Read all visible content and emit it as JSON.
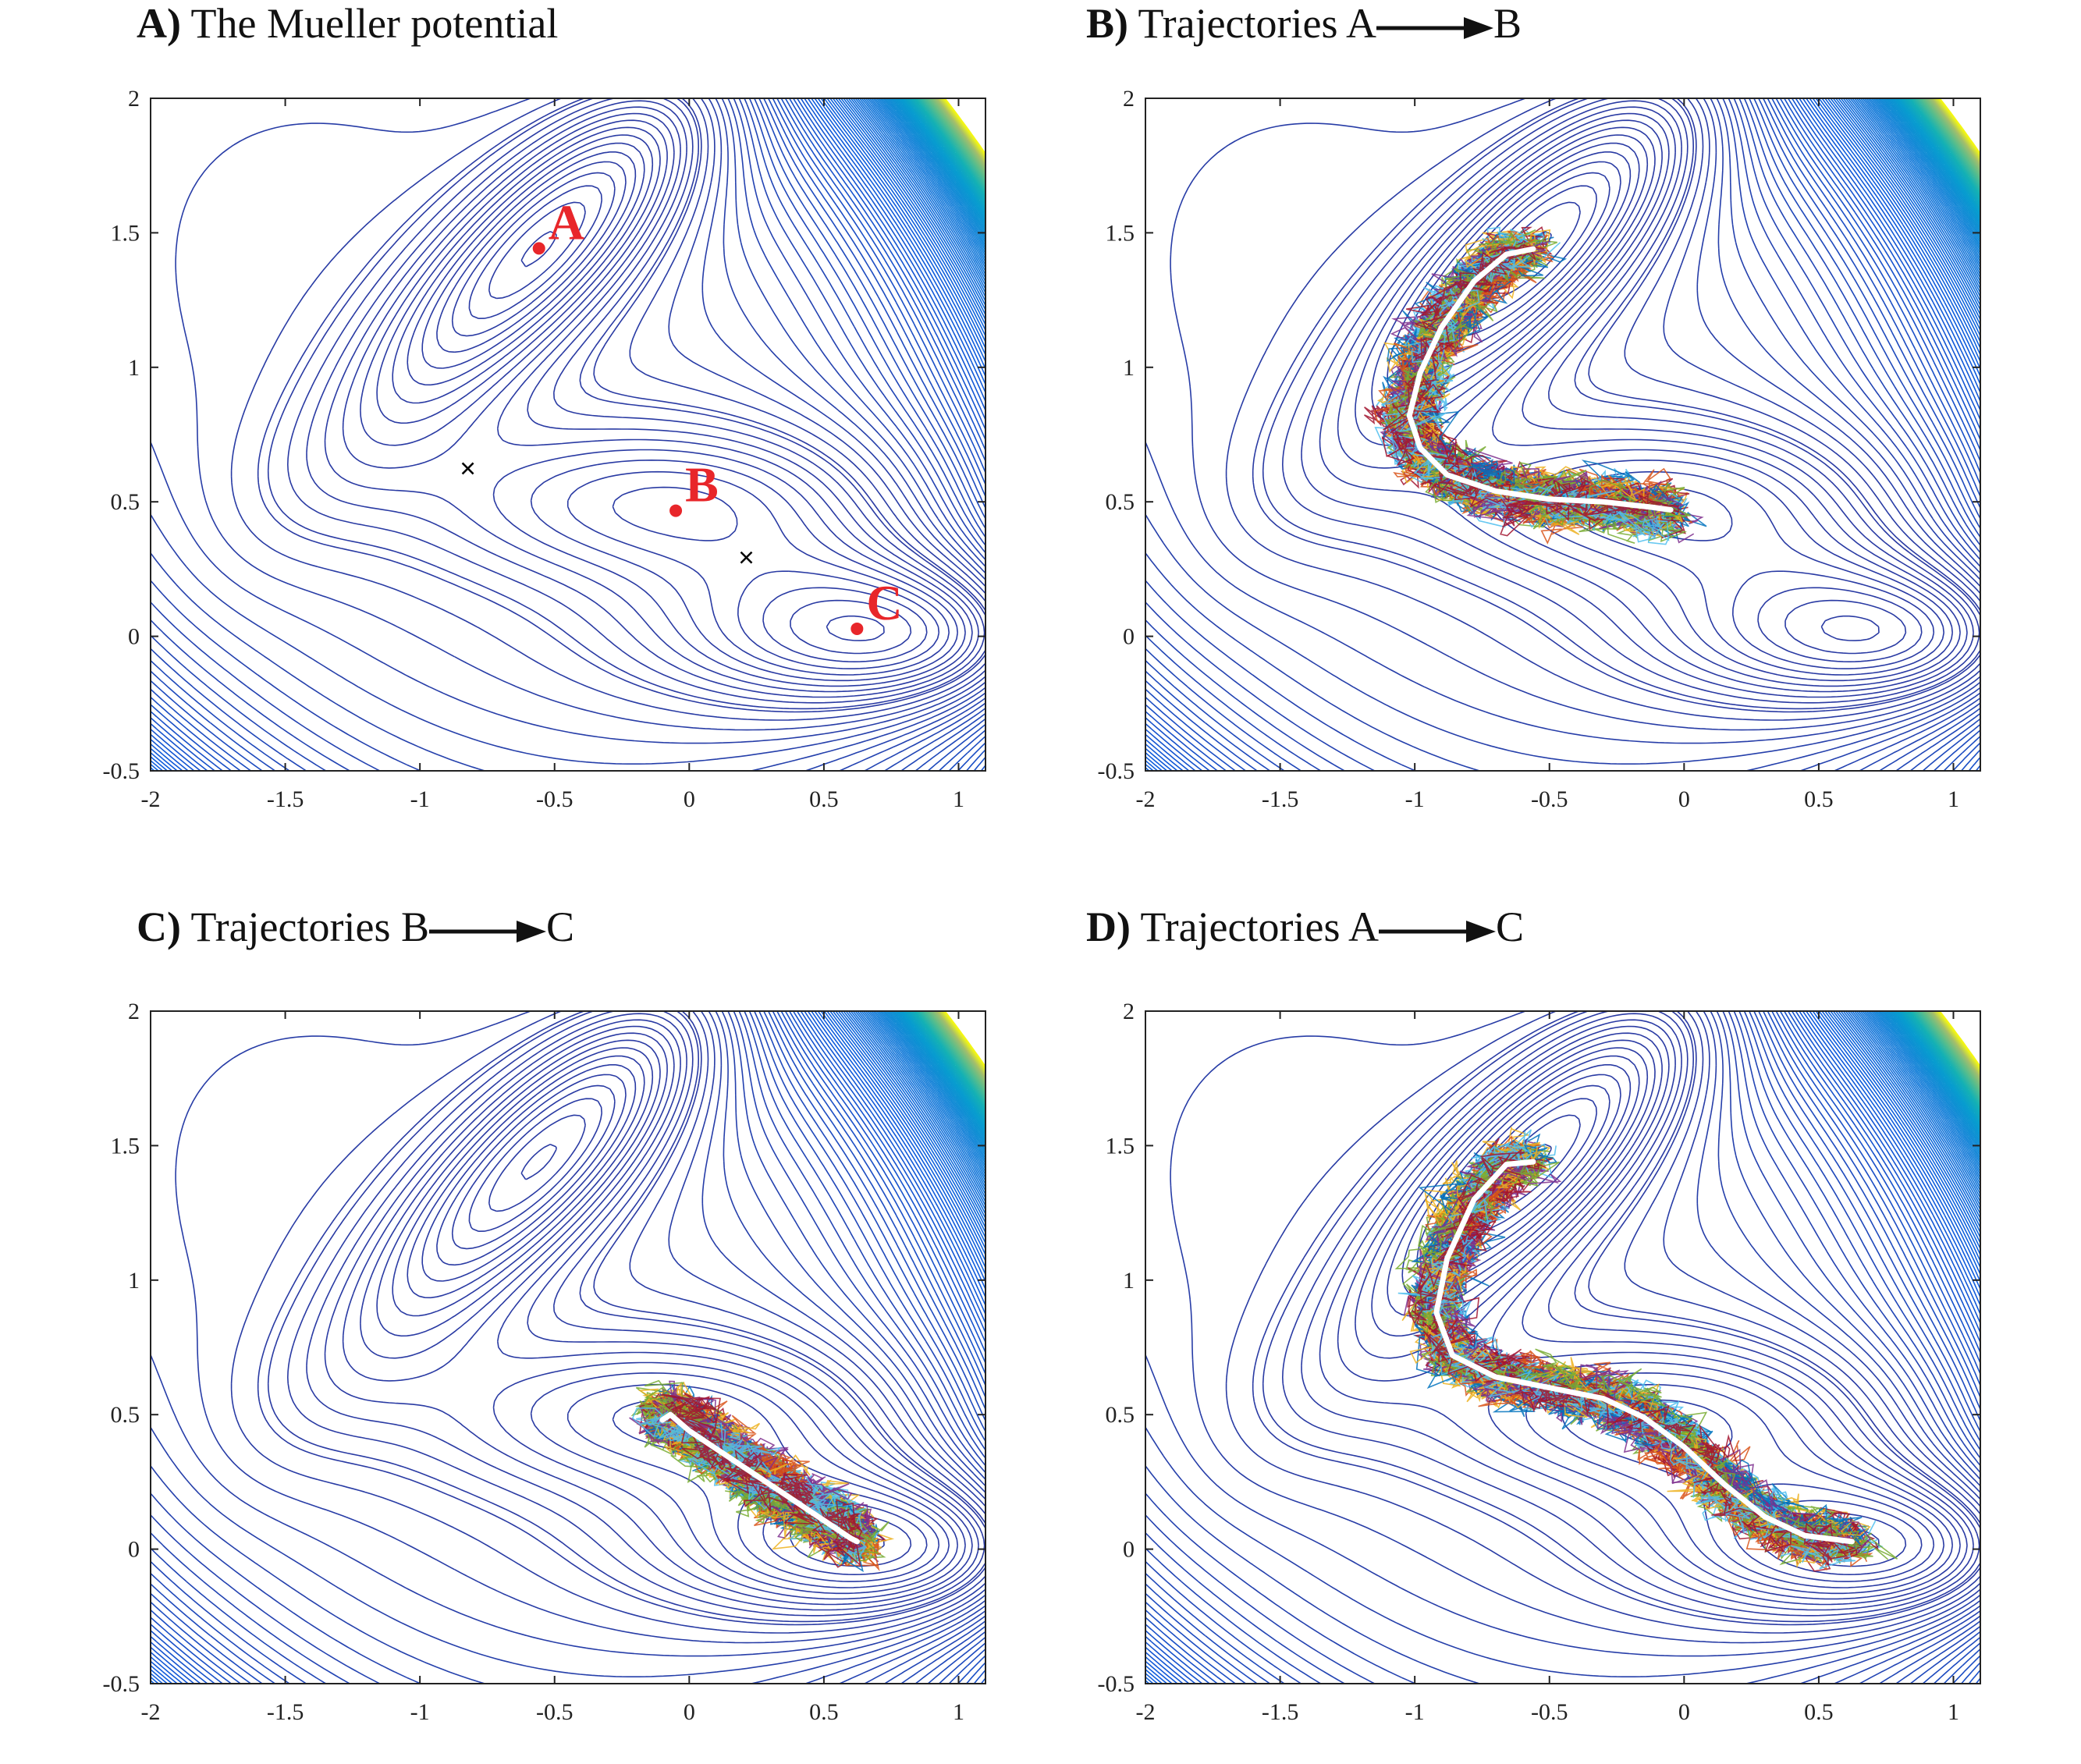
{
  "chart_data": [
    {
      "type": "contour",
      "title_letter": "A)",
      "title_text": "The Mueller potential",
      "xlim": [
        -2,
        1.1
      ],
      "ylim": [
        -0.5,
        2
      ],
      "xticks": [
        "-2",
        "-1.5",
        "-1",
        "-0.5",
        "0",
        "0.5",
        "1"
      ],
      "yticks": [
        "-0.5",
        "0",
        "0.5",
        "1",
        "1.5",
        "2"
      ],
      "minima": [
        {
          "label": "A",
          "x": -0.558,
          "y": 1.442
        },
        {
          "label": "B",
          "x": -0.05,
          "y": 0.467
        },
        {
          "label": "C",
          "x": 0.623,
          "y": 0.028
        }
      ],
      "saddles": [
        {
          "x": -0.822,
          "y": 0.624
        },
        {
          "x": 0.212,
          "y": 0.293
        }
      ]
    },
    {
      "type": "contour",
      "title_letter": "B)",
      "title_text": "Trajectories A",
      "title_end": "B",
      "xlim": [
        -2,
        1.1
      ],
      "ylim": [
        -0.5,
        2
      ],
      "xticks": [
        "-2",
        "-1.5",
        "-1",
        "-0.5",
        "0",
        "0.5",
        "1"
      ],
      "yticks": [
        "-0.5",
        "0",
        "0.5",
        "1",
        "1.5",
        "2"
      ],
      "mean_path": [
        [
          -0.56,
          1.44
        ],
        [
          -0.66,
          1.42
        ],
        [
          -0.78,
          1.32
        ],
        [
          -0.9,
          1.15
        ],
        [
          -0.98,
          0.98
        ],
        [
          -1.02,
          0.82
        ],
        [
          -0.98,
          0.7
        ],
        [
          -0.88,
          0.6
        ],
        [
          -0.7,
          0.54
        ],
        [
          -0.5,
          0.51
        ],
        [
          -0.3,
          0.5
        ],
        [
          -0.12,
          0.48
        ],
        [
          -0.05,
          0.47
        ]
      ]
    },
    {
      "type": "contour",
      "title_letter": "C)",
      "title_text": "Trajectories B",
      "title_end": "C",
      "xlim": [
        -2,
        1.1
      ],
      "ylim": [
        -0.5,
        2
      ],
      "xticks": [
        "-2",
        "-1.5",
        "-1",
        "-0.5",
        "0",
        "0.5",
        "1"
      ],
      "yticks": [
        "-0.5",
        "0",
        "0.5",
        "1",
        "1.5",
        "2"
      ],
      "mean_path": [
        [
          -0.1,
          0.48
        ],
        [
          -0.07,
          0.5
        ],
        [
          0.0,
          0.44
        ],
        [
          0.12,
          0.36
        ],
        [
          0.24,
          0.28
        ],
        [
          0.36,
          0.2
        ],
        [
          0.48,
          0.12
        ],
        [
          0.6,
          0.04
        ],
        [
          0.623,
          0.028
        ]
      ]
    },
    {
      "type": "contour",
      "title_letter": "D)",
      "title_text": "Trajectories A",
      "title_end": "C",
      "xlim": [
        -2,
        1.1
      ],
      "ylim": [
        -0.5,
        2
      ],
      "xticks": [
        "-2",
        "-1.5",
        "-1",
        "-0.5",
        "0",
        "0.5",
        "1"
      ],
      "yticks": [
        "-0.5",
        "0",
        "0.5",
        "1",
        "1.5",
        "2"
      ],
      "mean_path": [
        [
          -0.56,
          1.44
        ],
        [
          -0.66,
          1.43
        ],
        [
          -0.78,
          1.3
        ],
        [
          -0.88,
          1.08
        ],
        [
          -0.92,
          0.88
        ],
        [
          -0.86,
          0.72
        ],
        [
          -0.7,
          0.64
        ],
        [
          -0.5,
          0.6
        ],
        [
          -0.3,
          0.56
        ],
        [
          -0.15,
          0.49
        ],
        [
          0.0,
          0.38
        ],
        [
          0.15,
          0.24
        ],
        [
          0.3,
          0.12
        ],
        [
          0.45,
          0.05
        ],
        [
          0.623,
          0.028
        ]
      ]
    }
  ]
}
